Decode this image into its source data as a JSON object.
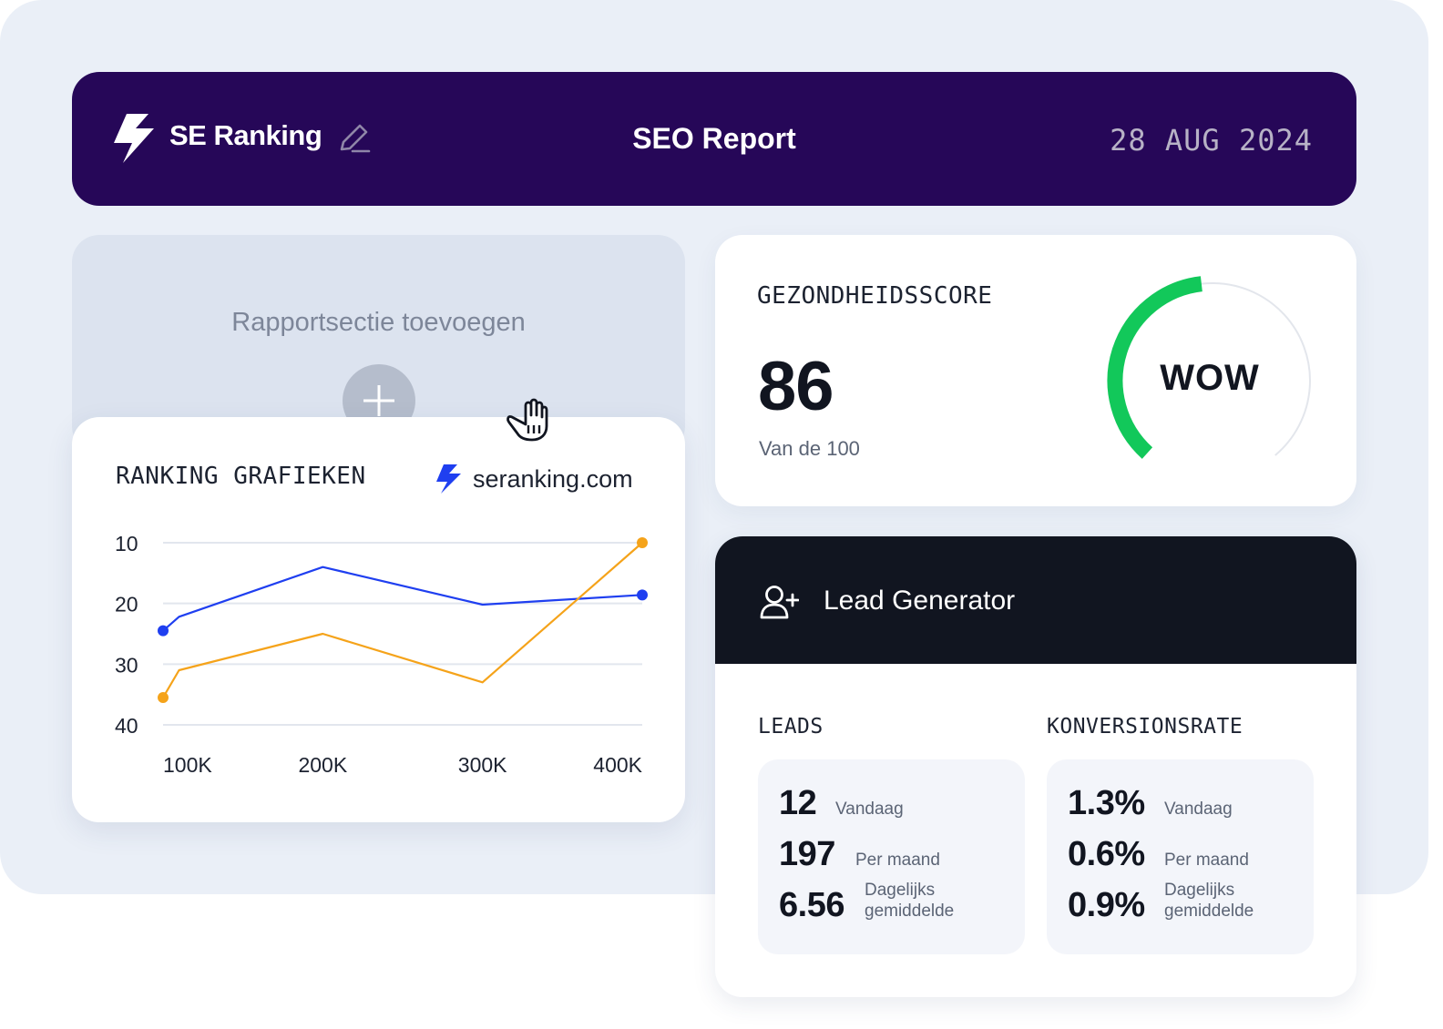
{
  "header": {
    "brand": "SE Ranking",
    "title": "SEO Report",
    "date": "28 AUG 2024",
    "logo_icon": "se-ranking-logo-icon",
    "edit_icon": "pencil-edit-icon"
  },
  "add_section": {
    "title": "Rapportsectie toevoegen",
    "button_icon": "plus-icon"
  },
  "ranking": {
    "title": "RANKING GRAFIEKEN",
    "source": "seranking.com"
  },
  "chart_data": {
    "type": "line",
    "title": "RANKING GRAFIEKEN",
    "x_tick_labels": [
      "100K",
      "200K",
      "300K",
      "400K"
    ],
    "y_tick_labels": [
      "10",
      "20",
      "30",
      "40"
    ],
    "ylim": [
      10,
      40
    ],
    "y_inverted": true,
    "grid": true,
    "series": [
      {
        "color": "#1f3ff0",
        "points": [
          [
            100,
            24.5
          ],
          [
            110,
            22.2
          ],
          [
            200,
            14
          ],
          [
            300,
            20.2
          ],
          [
            400,
            18.6
          ]
        ]
      },
      {
        "color": "#f5a31a",
        "points": [
          [
            100,
            35.5
          ],
          [
            110,
            31
          ],
          [
            200,
            25
          ],
          [
            300,
            33
          ],
          [
            400,
            10
          ]
        ]
      }
    ]
  },
  "health": {
    "title": "GEZONDHEIDSSCORE",
    "score": "86",
    "subtitle": "Van de 100",
    "gauge_label": "WOW",
    "gauge_value": 0.86,
    "gauge_color": "#12c85a"
  },
  "lead": {
    "title": "Lead Generator",
    "icon": "add-user-icon",
    "leads": {
      "title": "LEADS",
      "rows": [
        {
          "value": "12",
          "label": "Vandaag"
        },
        {
          "value": "197",
          "label": "Per maand"
        },
        {
          "value": "6.56",
          "label": "Dagelijks gemiddelde"
        }
      ]
    },
    "conversion": {
      "title": "KONVERSIONSRATE",
      "rows": [
        {
          "value": "1.3%",
          "label": "Vandaag"
        },
        {
          "value": "0.6%",
          "label": "Per maand"
        },
        {
          "value": "0.9%",
          "label": "Dagelijks gemiddelde"
        }
      ]
    }
  },
  "cursor_icon": "grab-hand-icon"
}
